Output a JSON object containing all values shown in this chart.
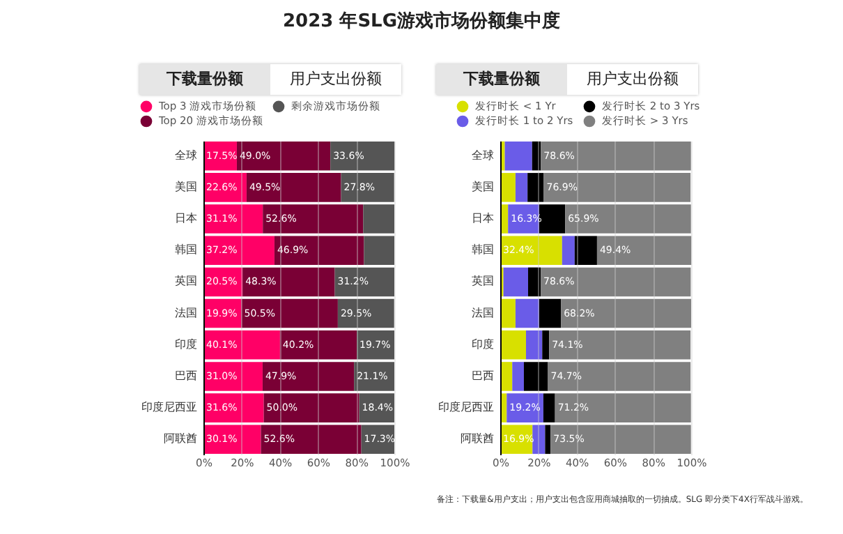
{
  "chart_data": [
    {
      "type": "bar",
      "orientation": "horizontal",
      "stacked": true,
      "title": "2023 年SLG游戏市场份额集中度",
      "annotations": [
        "下载量份额",
        "用户支出份额",
        "备注：下载量&用户支出；用户支出包含应用商城抽取的一切抽成。SLG 即分类下4X行军战斗游戏。"
      ],
      "categories": [
        "全球",
        "美国",
        "日本",
        "韩国",
        "英国",
        "法国",
        "印度",
        "巴西",
        "印度尼西亚",
        "阿联酋"
      ],
      "series": [
        {
          "name": "Top 3 游戏市场份额",
          "color": "#ff0066",
          "values": [
            17.5,
            22.6,
            31.1,
            37.2,
            20.5,
            19.9,
            40.1,
            31.0,
            31.6,
            30.1
          ],
          "value_labels": [
            "17.5%",
            "22.6%",
            "31.1%",
            "37.2%",
            "20.5%",
            "19.9%",
            "40.1%",
            "31.0%",
            "31.6%",
            "30.1%"
          ]
        },
        {
          "name": "Top 20 游戏市场份额",
          "color": "#7a0035",
          "values": [
            49.0,
            49.5,
            52.6,
            46.9,
            48.3,
            50.5,
            40.2,
            47.9,
            50.0,
            52.6
          ],
          "value_labels": [
            "49.0%",
            "49.5%",
            "52.6%",
            "46.9%",
            "48.3%",
            "50.5%",
            "40.2%",
            "47.9%",
            "50.0%",
            "52.6%"
          ]
        },
        {
          "name": "剩余游戏市场份额",
          "color": "#555555",
          "values": [
            33.6,
            27.8,
            16.3,
            15.9,
            31.2,
            29.5,
            19.7,
            21.1,
            18.4,
            17.3
          ],
          "value_labels": [
            "33.6%",
            "27.8%",
            null,
            null,
            "31.2%",
            "29.5%",
            "19.7%",
            "21.1%",
            "18.4%",
            "17.3%"
          ]
        }
      ],
      "xlim": [
        0,
        100
      ],
      "xticks": [
        {
          "value": 0,
          "label": "0%"
        },
        {
          "value": 20,
          "label": "20%"
        },
        {
          "value": 40,
          "label": "40%"
        },
        {
          "value": 60,
          "label": "60%"
        },
        {
          "value": 80,
          "label": "80%"
        },
        {
          "value": 100,
          "label": "100%"
        }
      ],
      "grid": "x",
      "legend": "top"
    },
    {
      "type": "bar",
      "orientation": "horizontal",
      "stacked": true,
      "annotations": [
        "下载量份额",
        "用户支出份额"
      ],
      "categories": [
        "全球",
        "美国",
        "日本",
        "韩国",
        "英国",
        "法国",
        "印度",
        "巴西",
        "印度尼西亚",
        "阿联酋"
      ],
      "series": [
        {
          "name": "发行时长 < 1 Yr",
          "color": "#d8e000",
          "values": [
            2.4,
            8.0,
            4.1,
            32.4,
            1.7,
            8.0,
            13.5,
            6.3,
            3.4,
            16.9
          ],
          "value_labels": [
            null,
            null,
            null,
            "32.4%",
            null,
            null,
            null,
            null,
            null,
            "16.9%"
          ]
        },
        {
          "name": "发行时长 1 to 2 Yrs",
          "color": "#6a5ce8",
          "values": [
            14.3,
            6.3,
            16.3,
            6.6,
            12.9,
            12.4,
            8.5,
            6.1,
            19.2,
            6.6
          ],
          "value_labels": [
            null,
            null,
            "16.3%",
            null,
            null,
            null,
            null,
            null,
            "19.2%",
            null
          ]
        },
        {
          "name": "发行时长 2 to 3 Yrs",
          "color": "#000000",
          "values": [
            4.6,
            8.5,
            13.6,
            11.7,
            6.6,
            11.4,
            3.6,
            12.6,
            6.1,
            2.9
          ],
          "value_labels": [
            null,
            null,
            null,
            null,
            null,
            null,
            null,
            null,
            null,
            null
          ]
        },
        {
          "name": "发行时长 > 3 Yrs",
          "color": "#808080",
          "values": [
            78.6,
            76.9,
            65.9,
            49.4,
            78.6,
            68.2,
            74.1,
            74.7,
            71.2,
            73.5
          ],
          "value_labels": [
            "78.6%",
            "76.9%",
            "65.9%",
            "49.4%",
            "78.6%",
            "68.2%",
            "74.1%",
            "74.7%",
            "71.2%",
            "73.5%"
          ]
        }
      ],
      "xlim": [
        0,
        100
      ],
      "xticks": [
        {
          "value": 0,
          "label": "0%"
        },
        {
          "value": 20,
          "label": "20%"
        },
        {
          "value": 40,
          "label": "40%"
        },
        {
          "value": 60,
          "label": "60%"
        },
        {
          "value": 80,
          "label": "80%"
        },
        {
          "value": 100,
          "label": "100%"
        }
      ],
      "grid": "x",
      "legend": "top"
    }
  ]
}
